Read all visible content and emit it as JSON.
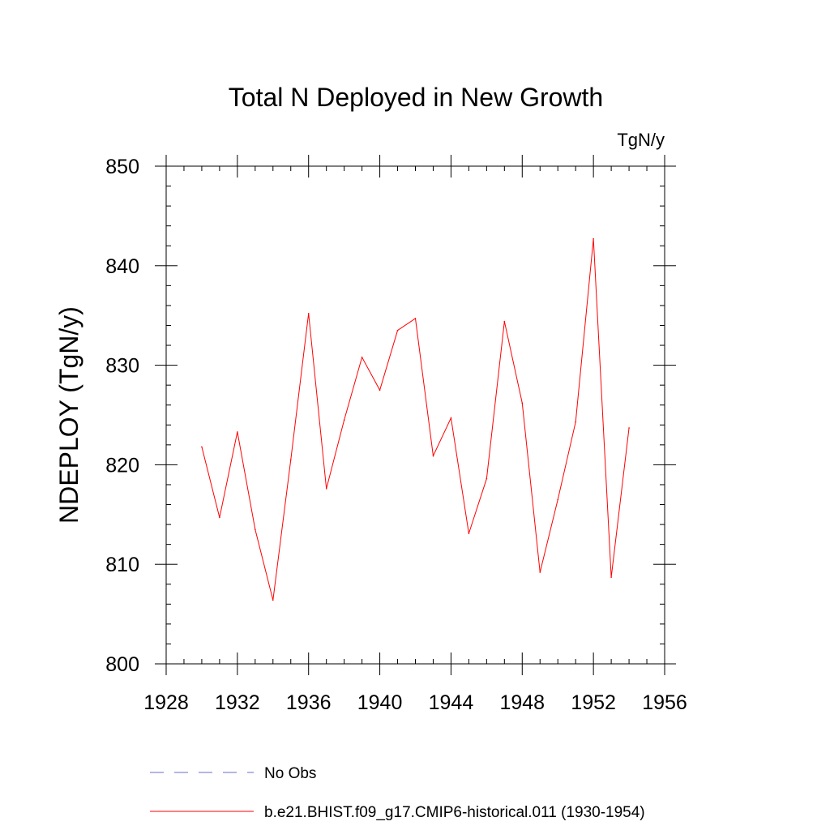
{
  "chart_data": {
    "type": "line",
    "title": "Total N Deployed in New Growth",
    "units": "TgN/y",
    "xlabel": "",
    "ylabel": "NDEPLOY  (TgN/y)",
    "xlim": [
      1928,
      1956
    ],
    "ylim": [
      800,
      850
    ],
    "xticks": [
      1928,
      1932,
      1936,
      1940,
      1944,
      1948,
      1952,
      1956
    ],
    "yticks": [
      800,
      810,
      820,
      830,
      840,
      850
    ],
    "x": [
      1930,
      1931,
      1932,
      1933,
      1934,
      1935,
      1936,
      1937,
      1938,
      1939,
      1940,
      1941,
      1942,
      1943,
      1944,
      1945,
      1946,
      1947,
      1948,
      1949,
      1950,
      1951,
      1952,
      1953,
      1954
    ],
    "series": [
      {
        "name": "b.e21.BHIST.f09_g17.CMIP6-historical.011 (1930-1954)",
        "color": "#ff0000",
        "values": [
          821.8,
          814.7,
          823.3,
          813.5,
          806.4,
          820.5,
          835.2,
          817.6,
          824.5,
          830.8,
          827.5,
          833.5,
          834.7,
          820.9,
          824.7,
          813.1,
          818.6,
          834.4,
          826.2,
          809.2,
          816.5,
          824.3,
          842.7,
          808.7,
          823.7
        ]
      }
    ],
    "legend": [
      {
        "label": "No Obs",
        "style": "dashed",
        "color": "#6a6ad0"
      },
      {
        "label": "b.e21.BHIST.f09_g17.CMIP6-historical.011 (1930-1954)",
        "style": "solid",
        "color": "#ff0000"
      }
    ],
    "legend_position": "bottom",
    "grid": false
  }
}
